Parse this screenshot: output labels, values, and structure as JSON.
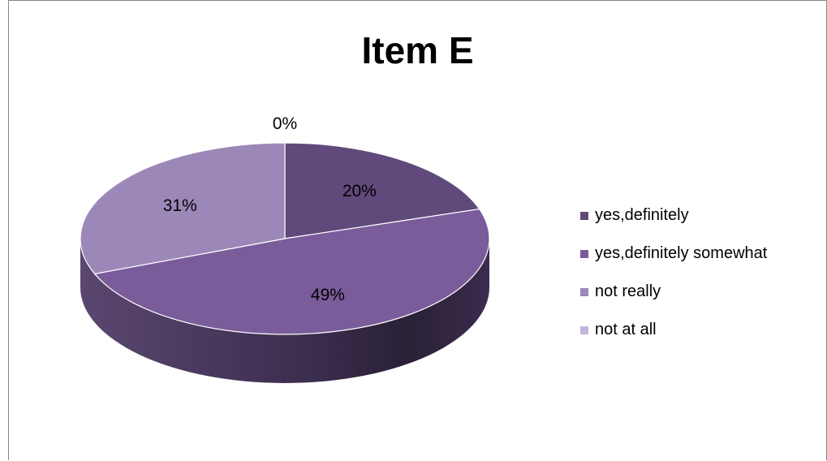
{
  "chart_data": {
    "type": "pie",
    "title": "Item E",
    "categories": [
      "yes,definitely",
      "yes,definitely somewhat",
      "not really",
      "not at all"
    ],
    "values": [
      20,
      49,
      31,
      0
    ],
    "data_labels": [
      "20%",
      "49%",
      "31%",
      "0%"
    ],
    "legend_placement": "right",
    "style": "3d",
    "colors": [
      "#604a7b",
      "#7a5c9b",
      "#9c88b8",
      "#c4b6d8"
    ]
  }
}
